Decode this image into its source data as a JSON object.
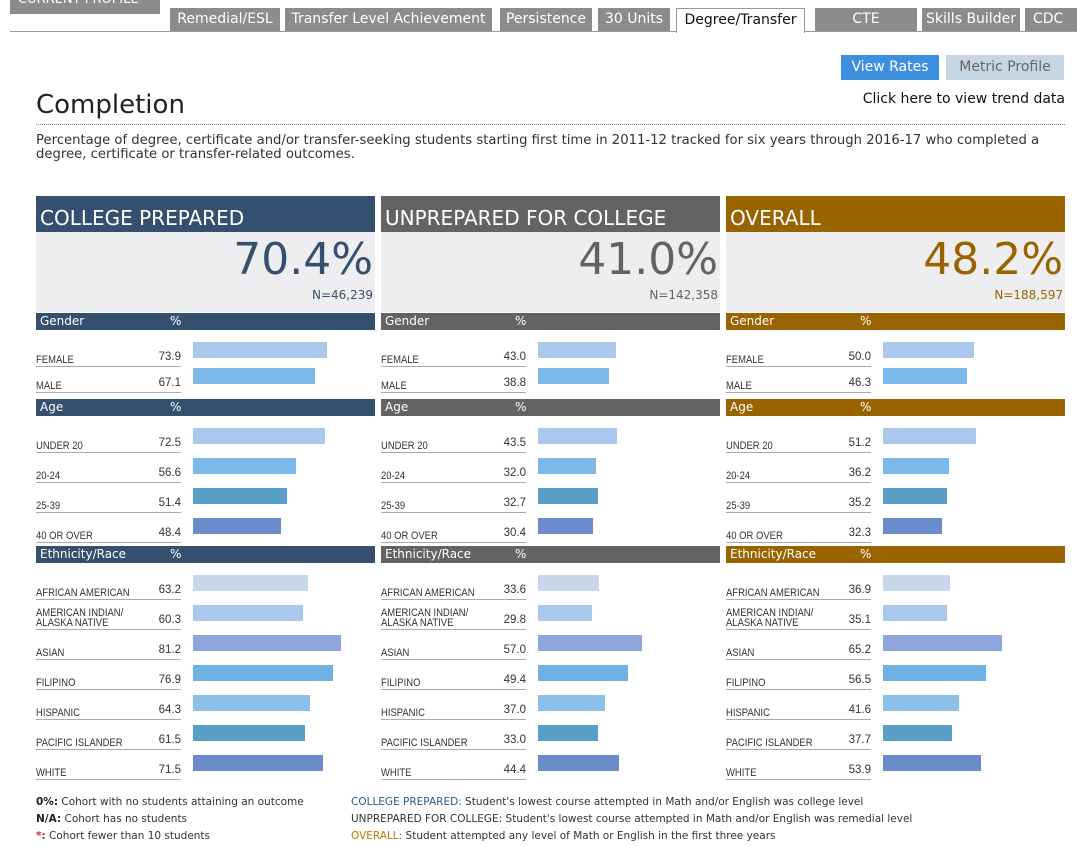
{
  "tabs": [
    "CURRENT PROFILE",
    "Remedial/ESL",
    "Transfer Level Achievement",
    "Persistence",
    "30 Units",
    "Degree/Transfer",
    "CTE",
    "Skills Builder",
    "CDC"
  ],
  "active_tab": 5,
  "buttons": [
    "View Rates",
    "Metric Profile"
  ],
  "title": "Completion",
  "trend_link": "Click here to view trend data",
  "description": "Percentage of degree, certificate and/or transfer-seeking students starting first time in 2011-12 tracked for six years through 2016-17 who completed a degree, certificate or transfer-related outcomes.",
  "percent_header": "%",
  "sections": [
    {
      "name": "Gender",
      "categories": [
        "FEMALE",
        "MALE"
      ],
      "colors": [
        "#a9c8ec",
        "#7db9e8"
      ]
    },
    {
      "name": "Age",
      "categories": [
        "UNDER 20",
        "20-24",
        "25-39",
        "40 OR OVER"
      ],
      "colors": [
        "#a9c8ec",
        "#7db9e8",
        "#58a0c6",
        "#6a8ccb"
      ]
    },
    {
      "name": "Ethnicity/Race",
      "categories": [
        "AFRICAN AMERICAN",
        "AMERICAN INDIAN/\nALASKA NATIVE",
        "ASIAN",
        "FILIPINO",
        "HISPANIC",
        "PACIFIC ISLANDER",
        "WHITE"
      ],
      "colors": [
        "#c8d6ea",
        "#a9c8ec",
        "#8fa6dc",
        "#6fb0e5",
        "#8cc0ea",
        "#58a0c6",
        "#6a8ccb"
      ]
    }
  ],
  "panels": [
    {
      "title": "COLLEGE PREPARED",
      "rate": "70.4%",
      "n": "N=46,239",
      "color": "#34506e",
      "values": [
        [
          73.9,
          67.1
        ],
        [
          72.5,
          56.6,
          51.4,
          48.4
        ],
        [
          63.2,
          60.3,
          81.2,
          76.9,
          64.3,
          61.5,
          71.5
        ]
      ],
      "value_labels": [
        [
          "73.9",
          "67.1"
        ],
        [
          "72.5",
          "56.6",
          "51.4",
          "48.4"
        ],
        [
          "63.2",
          "60.3",
          "81.2",
          "76.9",
          "64.3",
          "61.5",
          "71.5"
        ]
      ]
    },
    {
      "title": "UNPREPARED FOR COLLEGE",
      "rate": "41.0%",
      "n": "N=142,358",
      "color": "#636363",
      "values": [
        [
          43.0,
          38.8
        ],
        [
          43.5,
          32.0,
          32.7,
          30.4
        ],
        [
          33.6,
          29.8,
          57.0,
          49.4,
          37.0,
          33.0,
          44.4
        ]
      ],
      "value_labels": [
        [
          "43.0",
          "38.8"
        ],
        [
          "43.5",
          "32.0",
          "32.7",
          "30.4"
        ],
        [
          "33.6",
          "29.8",
          "57.0",
          "49.4",
          "37.0",
          "33.0",
          "44.4"
        ]
      ]
    },
    {
      "title": "OVERALL",
      "rate": "48.2%",
      "n": "N=188,597",
      "color": "#996400",
      "values": [
        [
          50.0,
          46.3
        ],
        [
          51.2,
          36.2,
          35.2,
          32.3
        ],
        [
          36.9,
          35.1,
          65.2,
          56.5,
          41.6,
          37.7,
          53.9
        ]
      ],
      "value_labels": [
        [
          "50.0",
          "46.3"
        ],
        [
          "51.2",
          "36.2",
          "35.2",
          "32.3"
        ],
        [
          "36.9",
          "35.1",
          "65.2",
          "56.5",
          "41.6",
          "37.7",
          "53.9"
        ]
      ]
    }
  ],
  "notes_left": [
    {
      "key": "0%:",
      "text": "Cohort with no students attaining an outcome",
      "color": "#222222"
    },
    {
      "key": "N/A:",
      "text": "Cohort has no students",
      "color": "#222222"
    },
    {
      "key": "*:",
      "text": "Cohort fewer than 10 students",
      "color": "#d02020"
    }
  ],
  "notes_right": [
    {
      "key": "COLLEGE PREPARED:",
      "text": "Student's lowest course attempted in Math and/or English was college level",
      "color": "#2c5a8c"
    },
    {
      "key": "UNPREPARED FOR COLLEGE:",
      "text": "Student's lowest course attempted in Math and/or English was remedial level",
      "color": "#333333"
    },
    {
      "key": "OVERALL:",
      "text": "Student attempted any level of Math or English in the first three years",
      "color": "#c07800"
    }
  ]
}
